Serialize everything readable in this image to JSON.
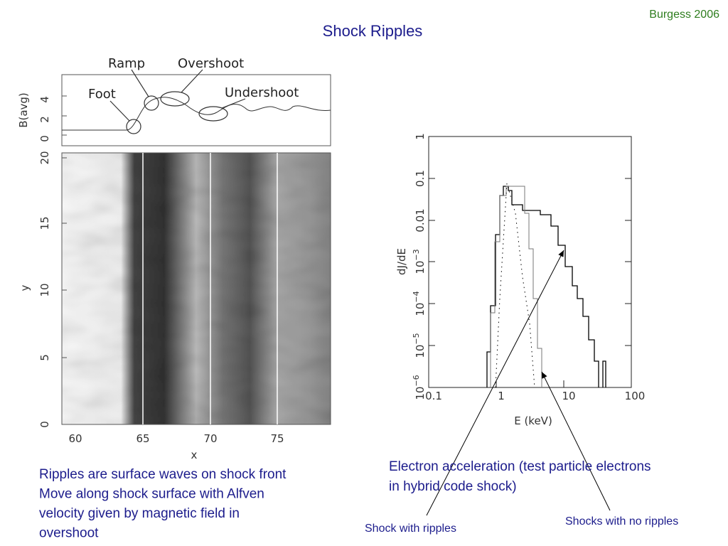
{
  "header": {
    "credit": "Burgess  2006",
    "title": "Shock Ripples"
  },
  "left_figure": {
    "top_panel": {
      "y_label": "B(avg)",
      "y_ticks": [
        "0",
        "2",
        "4"
      ],
      "annotations": [
        "Foot",
        "Ramp",
        "Overshoot",
        "Undershoot"
      ]
    },
    "bottom_panel": {
      "y_label": "y",
      "y_ticks": [
        "0",
        "5",
        "10",
        "15",
        "20"
      ],
      "x_label": "x",
      "x_ticks": [
        "60",
        "65",
        "70",
        "75"
      ]
    }
  },
  "right_figure": {
    "y_label": "dJ/dE",
    "y_ticks": [
      {
        "text": "1"
      },
      {
        "text": "0.1"
      },
      {
        "text": "0.01"
      },
      {
        "base": "10",
        "exp": "−3"
      },
      {
        "base": "10",
        "exp": "−4"
      },
      {
        "base": "10",
        "exp": "−5"
      },
      {
        "base": "10",
        "exp": "−6"
      }
    ],
    "x_ticks": [
      "0.1",
      "1",
      "10",
      "100"
    ],
    "x_label": "E (keV)"
  },
  "captions": {
    "left": [
      "Ripples are surface waves on shock front",
      "Move along shock surface with Alfven",
      "velocity given by magnetic field in",
      "overshoot"
    ],
    "right": [
      "Electron acceleration (test particle electrons",
      "in hybrid code shock)"
    ],
    "pointer_left": "Shock with ripples",
    "pointer_right": "Shocks with no ripples"
  }
}
